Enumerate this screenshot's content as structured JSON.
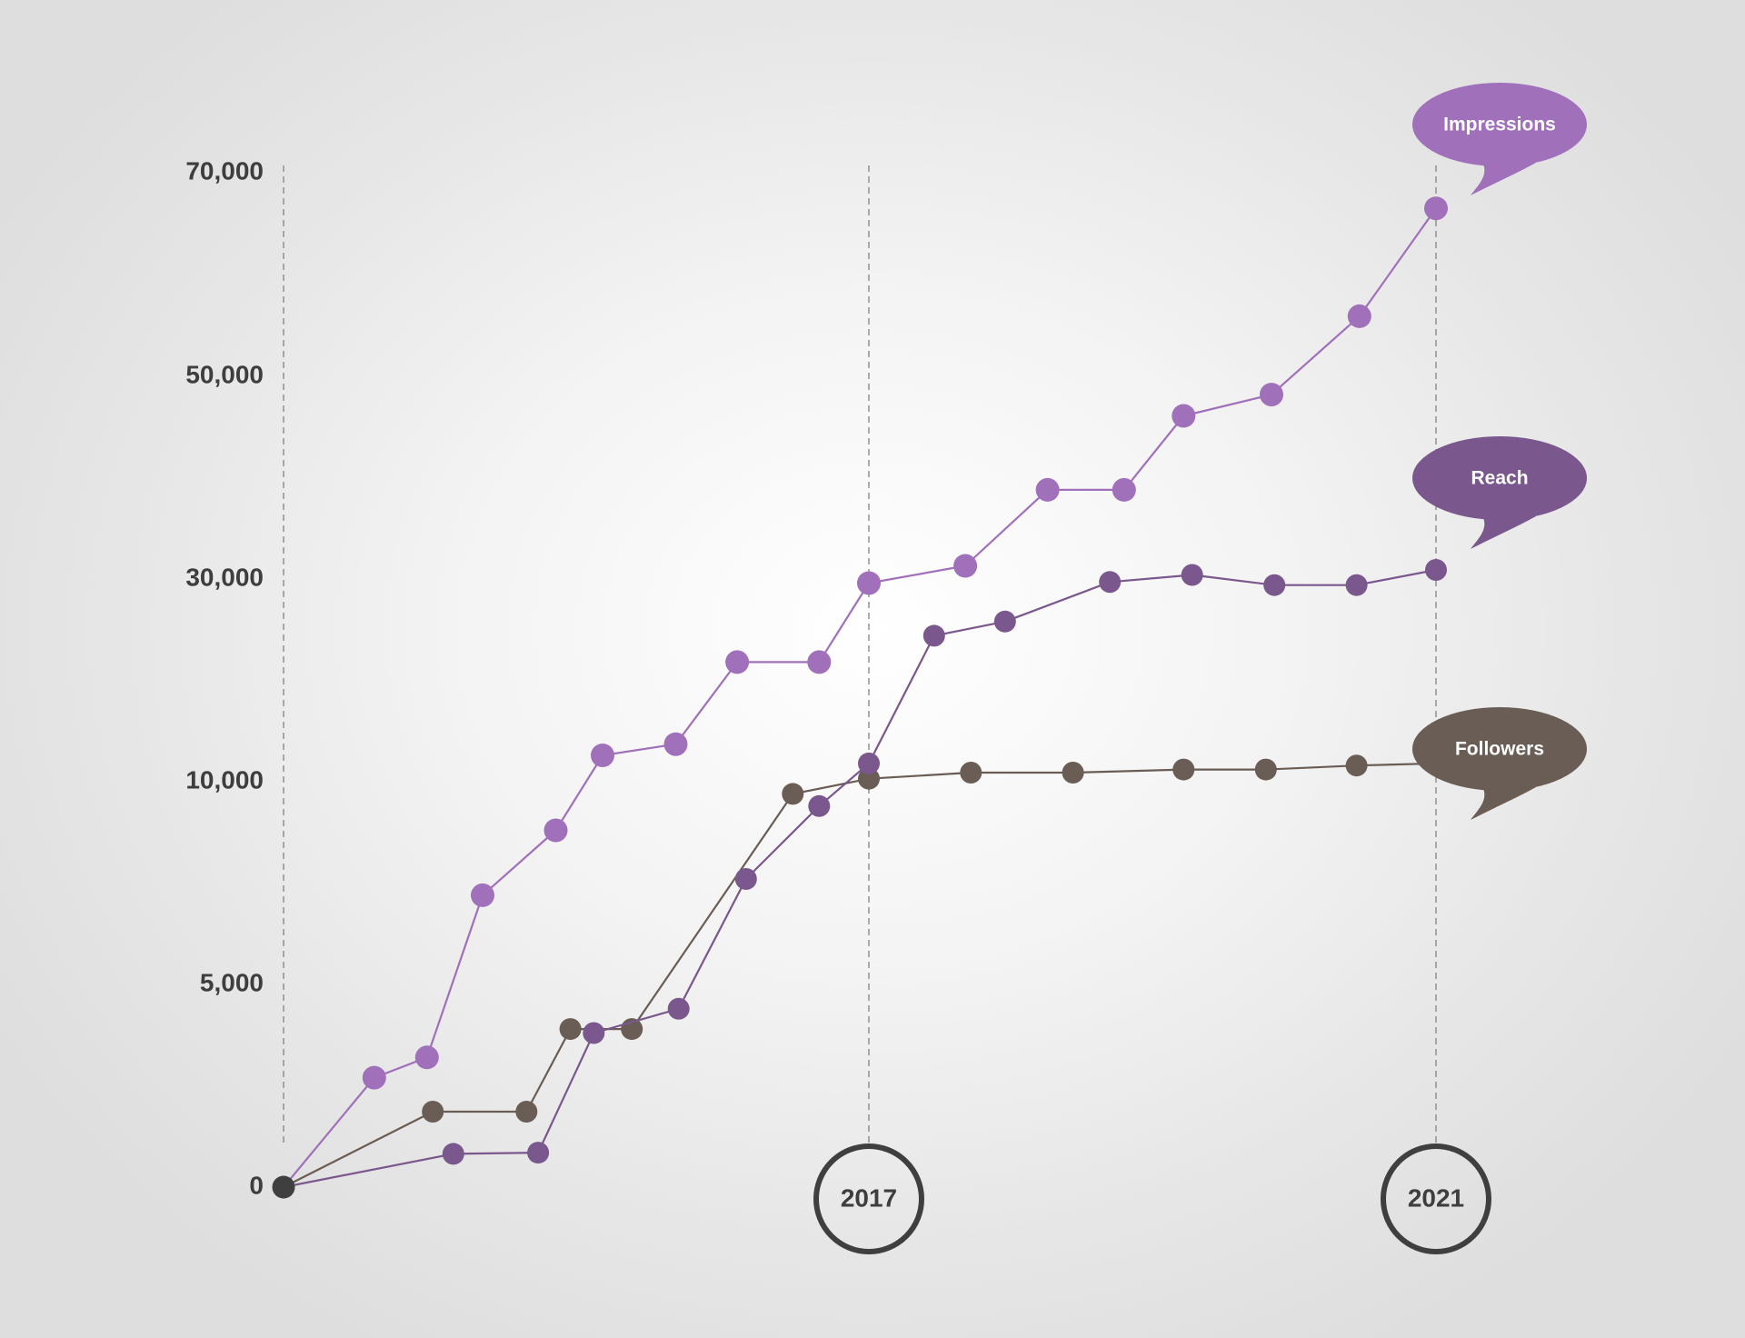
{
  "chart_data": {
    "type": "line",
    "y_ticks": [
      {
        "label": "70,000"
      },
      {
        "label": "50,000"
      },
      {
        "label": "30,000"
      },
      {
        "label": "10,000"
      },
      {
        "label": "5,000"
      },
      {
        "label": "0"
      }
    ],
    "x_markers": [
      "2017",
      "2021"
    ],
    "grid": "vertical dashed lines at origin, 2017 and 2021",
    "legend": "speech-bubble labels at right end of each series",
    "origin_color": "#3f3f3f",
    "year_circle_color": "#3f3f3f",
    "series": [
      {
        "name": "Impressions",
        "color": "#a070bb",
        "points": [
          {
            "x": 0.0,
            "y": 0
          },
          {
            "x": 0.31,
            "y": 2700
          },
          {
            "x": 0.49,
            "y": 3200
          },
          {
            "x": 0.68,
            "y": 7200
          },
          {
            "x": 0.93,
            "y": 8800
          },
          {
            "x": 1.09,
            "y": 12600
          },
          {
            "x": 1.34,
            "y": 13700
          },
          {
            "x": 1.55,
            "y": 21800
          },
          {
            "x": 1.83,
            "y": 21800
          },
          {
            "x": 2.0,
            "y": 29600
          },
          {
            "x": 2.34,
            "y": 31300
          },
          {
            "x": 2.63,
            "y": 38800
          },
          {
            "x": 2.9,
            "y": 38800
          },
          {
            "x": 3.11,
            "y": 46100
          },
          {
            "x": 3.42,
            "y": 48200
          },
          {
            "x": 3.73,
            "y": 55900
          },
          {
            "x": 4.0,
            "y": 66500
          }
        ]
      },
      {
        "name": "Reach",
        "color": "#7a578c",
        "points": [
          {
            "x": 0.0,
            "y": 0
          },
          {
            "x": 0.58,
            "y": 820
          },
          {
            "x": 0.87,
            "y": 850
          },
          {
            "x": 1.06,
            "y": 3800
          },
          {
            "x": 1.35,
            "y": 4400
          },
          {
            "x": 1.58,
            "y": 7600
          },
          {
            "x": 1.83,
            "y": 9400
          },
          {
            "x": 2.0,
            "y": 11800
          },
          {
            "x": 2.23,
            "y": 24400
          },
          {
            "x": 2.48,
            "y": 25800
          },
          {
            "x": 2.85,
            "y": 29700
          },
          {
            "x": 3.14,
            "y": 30400
          },
          {
            "x": 3.43,
            "y": 29400
          },
          {
            "x": 3.72,
            "y": 29400
          },
          {
            "x": 4.0,
            "y": 30900
          }
        ]
      },
      {
        "name": "Followers",
        "color": "#6a5d55",
        "points": [
          {
            "x": 0.0,
            "y": 0
          },
          {
            "x": 0.51,
            "y": 1860
          },
          {
            "x": 0.83,
            "y": 1860
          },
          {
            "x": 0.98,
            "y": 3900
          },
          {
            "x": 1.19,
            "y": 3900
          },
          {
            "x": 1.74,
            "y": 9700
          },
          {
            "x": 2.0,
            "y": 10300
          },
          {
            "x": 2.36,
            "y": 10900
          },
          {
            "x": 2.72,
            "y": 10900
          },
          {
            "x": 3.11,
            "y": 11200
          },
          {
            "x": 3.4,
            "y": 11200
          },
          {
            "x": 3.72,
            "y": 11600
          },
          {
            "x": 4.0,
            "y": 11800
          }
        ]
      }
    ]
  }
}
